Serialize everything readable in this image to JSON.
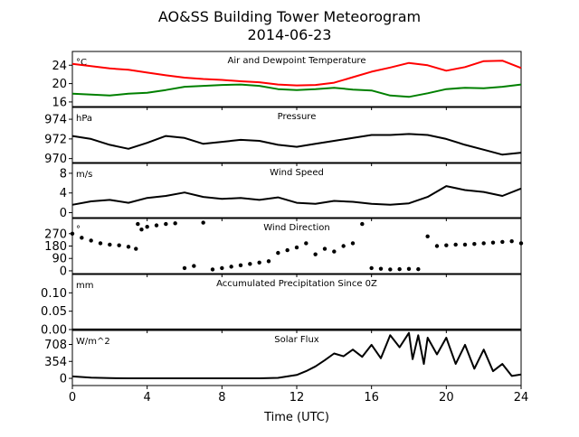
{
  "figure": {
    "title_line1": "AO&SS Building Tower Meteorogram",
    "title_line2": "2014-06-23",
    "xlabel": "Time (UTC)",
    "xticks": [
      "0",
      "4",
      "8",
      "12",
      "16",
      "20",
      "24"
    ],
    "colors": {
      "temperature": "#ff0000",
      "dewpoint": "#008000",
      "default": "#000000"
    }
  },
  "chart_data": [
    {
      "type": "line",
      "title": "Air and Dewpoint Temperature",
      "unit": "°C",
      "xlim": [
        0,
        24
      ],
      "ylim": [
        15,
        27
      ],
      "yticks": [
        16,
        20,
        24
      ],
      "series": [
        {
          "color": "#ff0000",
          "x": [
            0,
            1,
            2,
            3,
            4,
            5,
            6,
            7,
            8,
            9,
            10,
            11,
            12,
            13,
            14,
            15,
            16,
            17,
            18,
            19,
            20,
            21,
            22,
            23,
            24
          ],
          "values": [
            24.3,
            23.8,
            23.3,
            23.0,
            22.4,
            21.8,
            21.3,
            21.0,
            20.8,
            20.5,
            20.3,
            19.8,
            19.6,
            19.7,
            20.2,
            21.4,
            22.6,
            23.5,
            24.5,
            24.0,
            22.8,
            23.6,
            24.9,
            25.0,
            23.4
          ]
        },
        {
          "color": "#008000",
          "x": [
            0,
            1,
            2,
            3,
            4,
            5,
            6,
            7,
            8,
            9,
            10,
            11,
            12,
            13,
            14,
            15,
            16,
            17,
            18,
            19,
            20,
            21,
            22,
            23,
            24
          ],
          "values": [
            17.8,
            17.6,
            17.4,
            17.8,
            18.0,
            18.6,
            19.3,
            19.5,
            19.7,
            19.8,
            19.5,
            18.8,
            18.6,
            18.8,
            19.1,
            18.7,
            18.5,
            17.4,
            17.1,
            17.9,
            18.8,
            19.1,
            19.0,
            19.3,
            19.8
          ]
        }
      ]
    },
    {
      "type": "line",
      "title": "Pressure",
      "unit": "hPa",
      "xlim": [
        0,
        24
      ],
      "ylim": [
        969.6,
        975.2
      ],
      "yticks": [
        970,
        972,
        974
      ],
      "series": [
        {
          "color": "#000000",
          "x": [
            0,
            1,
            2,
            3,
            4,
            5,
            6,
            7,
            8,
            9,
            10,
            11,
            12,
            13,
            14,
            15,
            16,
            17,
            18,
            19,
            20,
            21,
            22,
            23,
            24
          ],
          "values": [
            972.3,
            972.0,
            971.4,
            971.0,
            971.6,
            972.3,
            972.1,
            971.5,
            971.7,
            971.9,
            971.8,
            971.4,
            971.2,
            971.5,
            971.8,
            972.1,
            972.4,
            972.4,
            972.5,
            972.4,
            972.0,
            971.4,
            970.9,
            970.4,
            970.6
          ]
        }
      ]
    },
    {
      "type": "line",
      "title": "Wind Speed",
      "unit": "m/s",
      "xlim": [
        0,
        24
      ],
      "ylim": [
        -1,
        10
      ],
      "yticks": [
        0,
        4,
        8
      ],
      "series": [
        {
          "color": "#000000",
          "x": [
            0,
            1,
            2,
            3,
            4,
            5,
            6,
            7,
            8,
            9,
            10,
            11,
            12,
            13,
            14,
            15,
            16,
            17,
            18,
            19,
            20,
            21,
            22,
            23,
            24
          ],
          "values": [
            1.6,
            2.3,
            2.6,
            2.0,
            3.0,
            3.4,
            4.1,
            3.2,
            2.8,
            3.0,
            2.6,
            3.1,
            2.0,
            1.8,
            2.4,
            2.2,
            1.8,
            1.6,
            1.9,
            3.2,
            5.4,
            4.6,
            4.2,
            3.4,
            4.9
          ]
        }
      ]
    },
    {
      "type": "scatter",
      "title": "Wind Direction",
      "unit": "°",
      "xlim": [
        0,
        24
      ],
      "ylim": [
        -20,
        380
      ],
      "yticks": [
        0,
        90,
        180,
        270
      ],
      "series": [
        {
          "color": "#000000",
          "x": [
            0,
            0.5,
            1,
            1.5,
            2,
            2.5,
            3,
            3.4,
            3.5,
            3.7,
            4,
            4.5,
            5,
            5.5,
            6,
            6.5,
            7,
            7.5,
            8,
            8.5,
            9,
            9.5,
            10,
            10.5,
            11,
            11.5,
            12,
            12.5,
            13,
            13.5,
            14,
            14.5,
            15,
            15.5,
            16,
            16.5,
            17,
            17.5,
            18,
            18.5,
            19,
            19.5,
            20,
            20.5,
            21,
            21.5,
            22,
            22.5,
            23,
            23.5,
            24
          ],
          "values": [
            270,
            240,
            220,
            200,
            190,
            185,
            175,
            160,
            340,
            300,
            320,
            330,
            340,
            345,
            20,
            35,
            350,
            10,
            20,
            30,
            40,
            50,
            60,
            70,
            130,
            150,
            170,
            200,
            120,
            160,
            140,
            180,
            200,
            340,
            20,
            15,
            10,
            12,
            14,
            12,
            250,
            180,
            185,
            190,
            190,
            195,
            200,
            205,
            210,
            215,
            200
          ]
        }
      ]
    },
    {
      "type": "line",
      "title": "Accumulated Precipitation Since 0Z",
      "unit": "mm",
      "xlim": [
        0,
        24
      ],
      "ylim": [
        0,
        0.15
      ],
      "yticks": [
        0.0,
        0.05,
        0.1
      ],
      "series": [
        {
          "color": "#000000",
          "x": [
            0,
            24
          ],
          "values": [
            0,
            0
          ]
        }
      ]
    },
    {
      "type": "line",
      "title": "Solar Flux",
      "unit": "W/m^2",
      "xlim": [
        0,
        24
      ],
      "ylim": [
        -150,
        1000
      ],
      "yticks": [
        0,
        354,
        708
      ],
      "series": [
        {
          "color": "#000000",
          "x": [
            0,
            1,
            2,
            3,
            4,
            5,
            6,
            7,
            8,
            9,
            10,
            11,
            12,
            12.5,
            13,
            13.5,
            14,
            14.5,
            15,
            15.5,
            16,
            16.5,
            17,
            17.5,
            18,
            18.2,
            18.5,
            18.8,
            19,
            19.5,
            20,
            20.5,
            21,
            21.5,
            22,
            22.5,
            23,
            23.5,
            24
          ],
          "values": [
            40,
            15,
            5,
            0,
            0,
            0,
            0,
            0,
            0,
            0,
            0,
            10,
            70,
            150,
            250,
            380,
            520,
            460,
            600,
            450,
            700,
            420,
            900,
            650,
            950,
            400,
            900,
            300,
            850,
            500,
            850,
            300,
            700,
            200,
            600,
            150,
            300,
            50,
            80
          ]
        }
      ]
    }
  ]
}
